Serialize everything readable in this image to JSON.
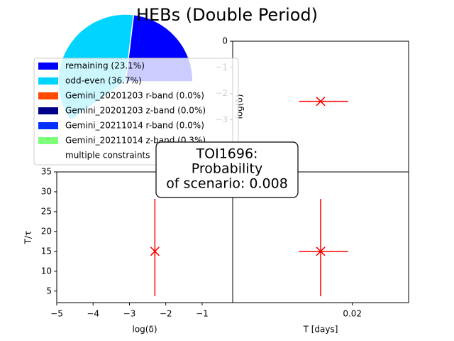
{
  "title": "HEBs (Double Period)",
  "annotation": [
    "TOI1696:",
    "Probability",
    "of scenario: 0.008"
  ],
  "chart_data": [
    {
      "type": "pie",
      "categories": [
        "remaining (23.1%)",
        "odd-even (36.7%)",
        "Gemini_20201203 r-band (0.0%)",
        "Gemini_20201203 z-band (0.0%)",
        "Gemini_20211014 r-band (0.0%)",
        "Gemini_20211014 z-band (0.3%)",
        "multiple constraints"
      ],
      "values": [
        23.1,
        36.7,
        0.0,
        0.0,
        0.0,
        0.3,
        null
      ],
      "colors": [
        "#0000ff",
        "#00d4ff",
        "#ff4a00",
        "#00008b",
        "#0030ff",
        "#7dff7a",
        "#ffffff"
      ]
    },
    {
      "type": "scatter",
      "x": [
        0.0147
      ],
      "y": [
        -2.3
      ],
      "xerr": [
        0.0036,
        0.0046
      ],
      "color": "#ff0000",
      "xlim": [
        0,
        0.0294
      ],
      "ylim": [
        -5,
        0
      ],
      "yticks": [
        0,
        {
          "value": -1,
          "label": "−1"
        },
        {
          "value": -2,
          "label": "−2"
        },
        {
          "value": -3,
          "label": "−3"
        },
        {
          "value": -4,
          "label": "−4"
        }
      ],
      "ylabel": "log(δ)"
    },
    {
      "type": "scatter",
      "x": [
        -2.3
      ],
      "y": [
        15
      ],
      "yerr": [
        11.3,
        13.2
      ],
      "color": "#ff0000",
      "xlim": [
        -5,
        -0.16
      ],
      "ylim": [
        2.1,
        35
      ],
      "xticks": [
        {
          "value": -5,
          "label": "−5"
        },
        {
          "value": -4,
          "label": "−4"
        },
        {
          "value": -3,
          "label": "−3"
        },
        {
          "value": -2,
          "label": "−2"
        },
        {
          "value": -1,
          "label": "−1"
        }
      ],
      "yticks": [
        5,
        10,
        15,
        20,
        25,
        30,
        35
      ],
      "xlabel": "log(δ)",
      "ylabel": "T/τ"
    },
    {
      "type": "scatter",
      "x": [
        0.0147
      ],
      "y": [
        15
      ],
      "xerr": [
        0.0036,
        0.0046
      ],
      "yerr": [
        11.3,
        13.2
      ],
      "color": "#ff0000",
      "xlim": [
        0,
        0.0294
      ],
      "ylim": [
        2.1,
        35
      ],
      "xticks": [
        0.02
      ],
      "xlabel": "T [days]"
    }
  ]
}
